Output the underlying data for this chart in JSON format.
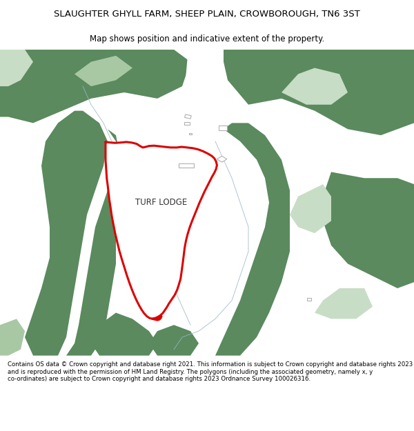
{
  "title": "SLAUGHTER GHYLL FARM, SHEEP PLAIN, CROWBOROUGH, TN6 3ST",
  "subtitle": "Map shows position and indicative extent of the property.",
  "footer": "Contains OS data © Crown copyright and database right 2021. This information is subject to Crown copyright and database rights 2023 and is reproduced with the permission of HM Land Registry. The polygons (including the associated geometry, namely x, y co-ordinates) are subject to Crown copyright and database rights 2023 Ordnance Survey 100026316.",
  "bg_color": "#ffffff",
  "map_bg": "#f0efec",
  "dark_green": "#5a8a5e",
  "mid_green": "#6a9a6e",
  "light_green": "#a8c8a4",
  "very_light_green": "#c8ddc5",
  "red_outline": "#dd0000",
  "label_text": "TURF LODGE",
  "figsize": [
    6.0,
    6.25
  ],
  "dpi": 100
}
